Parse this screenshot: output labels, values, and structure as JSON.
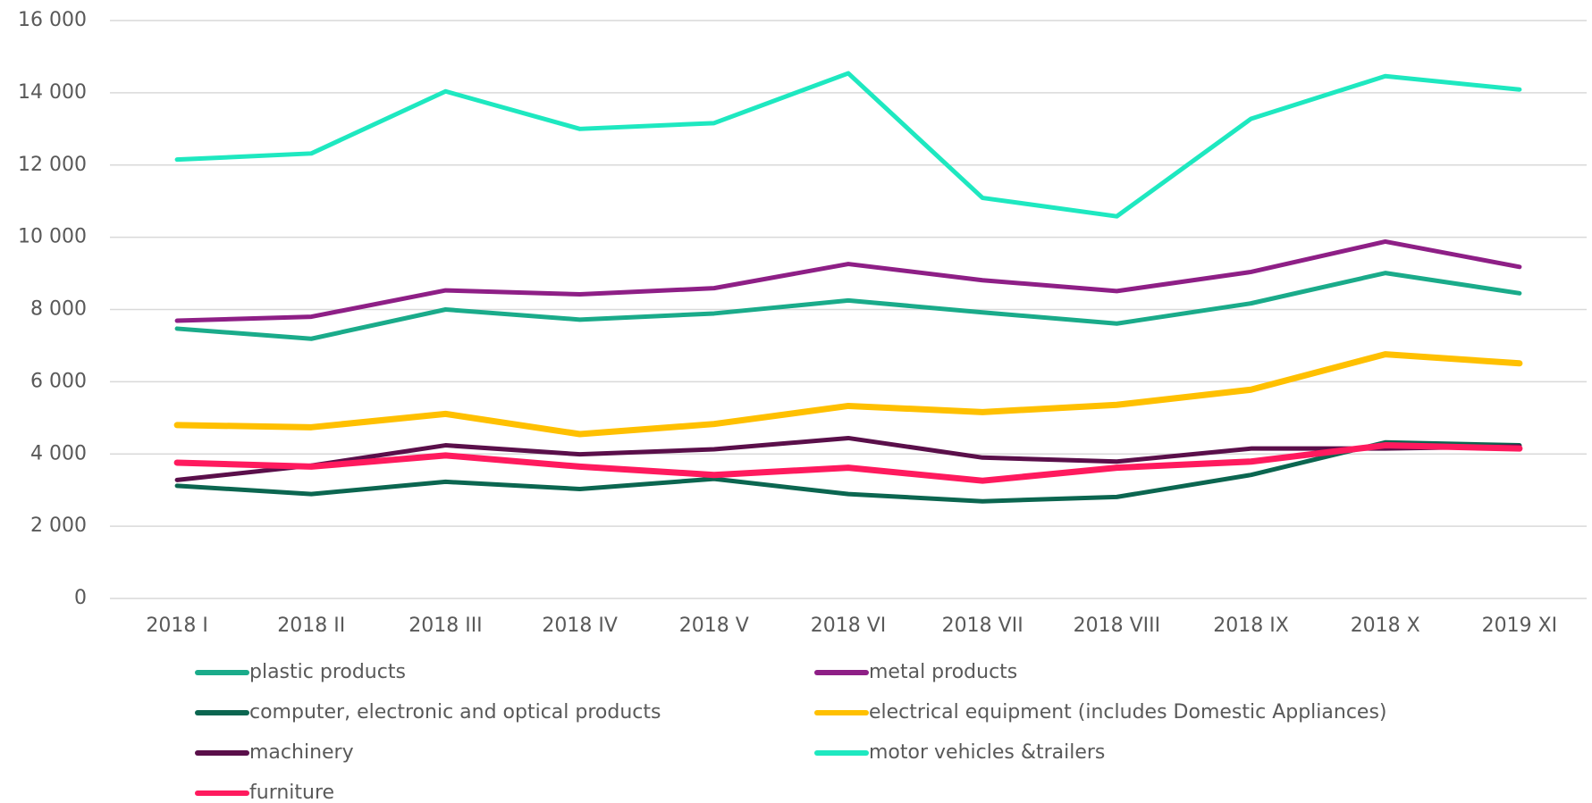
{
  "chart_data": {
    "type": "line",
    "categories": [
      "2018 I",
      "2018 II",
      "2018 III",
      "2018 IV",
      "2018 V",
      "2018 VI",
      "2018 VII",
      "2018 VIII",
      "2018 IX",
      "2018 X",
      "2019 XI"
    ],
    "series": [
      {
        "name": "plastic products",
        "color": "#1aab8a",
        "values": [
          7470,
          7190,
          8000,
          7720,
          7890,
          8250,
          7920,
          7610,
          8170,
          9010,
          8450
        ]
      },
      {
        "name": "metal products",
        "color": "#8e1f86",
        "values": [
          7690,
          7800,
          8530,
          8420,
          8590,
          9260,
          8810,
          8510,
          9040,
          9880,
          9180
        ]
      },
      {
        "name": "computer, electronic and optical products",
        "color": "#0b6650",
        "values": [
          3120,
          2890,
          3230,
          3030,
          3310,
          2890,
          2690,
          2810,
          3420,
          4320,
          4240
        ]
      },
      {
        "name": "electrical equipment (includes Domestic Appliances)",
        "color": "#ffc000",
        "values": [
          4800,
          4740,
          5110,
          4550,
          4830,
          5330,
          5160,
          5360,
          5780,
          6760,
          6510
        ]
      },
      {
        "name": "machinery",
        "color": "#5a0f4a",
        "values": [
          3280,
          3680,
          4240,
          3990,
          4130,
          4440,
          3900,
          3790,
          4150,
          4150,
          4210
        ]
      },
      {
        "name": "motor vehicles &trailers",
        "color": "#1ee8c0",
        "values": [
          12150,
          12320,
          14040,
          13000,
          13160,
          14540,
          11090,
          10580,
          13280,
          14460,
          14090
        ]
      },
      {
        "name": "furniture",
        "color": "#ff1a5e",
        "values": [
          3760,
          3650,
          3960,
          3650,
          3420,
          3620,
          3260,
          3620,
          3790,
          4240,
          4150
        ]
      }
    ],
    "ylim": [
      0,
      16000
    ],
    "yticks": [
      0,
      {
        "value": 2000,
        "label": "2 000"
      },
      {
        "value": 4000,
        "label": "4 000"
      },
      {
        "value": 6000,
        "label": "6 000"
      },
      {
        "value": 8000,
        "label": "8 000"
      },
      {
        "value": 10000,
        "label": "10 000"
      },
      {
        "value": 12000,
        "label": "12 000"
      },
      {
        "value": 14000,
        "label": "14 000"
      },
      {
        "value": 16000,
        "label": "16 000"
      }
    ],
    "grid": true
  }
}
